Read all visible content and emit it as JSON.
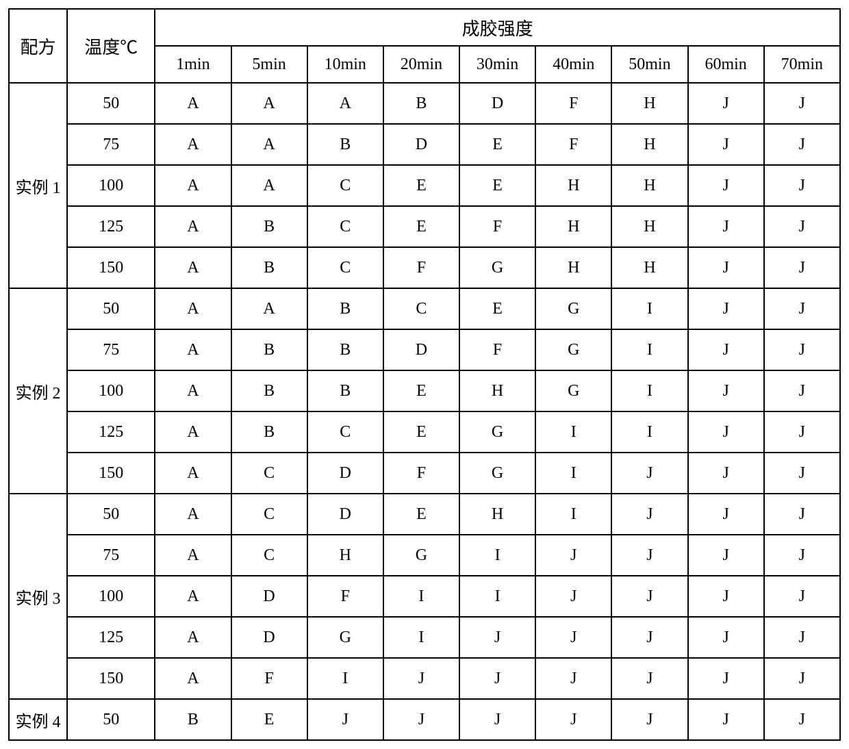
{
  "table": {
    "headers": {
      "formula": "配方",
      "temperature": "温度℃",
      "strength": "成胶强度"
    },
    "time_columns": [
      "1min",
      "5min",
      "10min",
      "20min",
      "30min",
      "40min",
      "50min",
      "60min",
      "70min"
    ],
    "groups": [
      {
        "label": "实例 1",
        "rows": [
          {
            "temp": "50",
            "values": [
              "A",
              "A",
              "A",
              "B",
              "D",
              "F",
              "H",
              "J",
              "J"
            ]
          },
          {
            "temp": "75",
            "values": [
              "A",
              "A",
              "B",
              "D",
              "E",
              "F",
              "H",
              "J",
              "J"
            ]
          },
          {
            "temp": "100",
            "values": [
              "A",
              "A",
              "C",
              "E",
              "E",
              "H",
              "H",
              "J",
              "J"
            ]
          },
          {
            "temp": "125",
            "values": [
              "A",
              "B",
              "C",
              "E",
              "F",
              "H",
              "H",
              "J",
              "J"
            ]
          },
          {
            "temp": "150",
            "values": [
              "A",
              "B",
              "C",
              "F",
              "G",
              "H",
              "H",
              "J",
              "J"
            ]
          }
        ]
      },
      {
        "label": "实例 2",
        "rows": [
          {
            "temp": "50",
            "values": [
              "A",
              "A",
              "B",
              "C",
              "E",
              "G",
              "I",
              "J",
              "J"
            ]
          },
          {
            "temp": "75",
            "values": [
              "A",
              "B",
              "B",
              "D",
              "F",
              "G",
              "I",
              "J",
              "J"
            ]
          },
          {
            "temp": "100",
            "values": [
              "A",
              "B",
              "B",
              "E",
              "H",
              "G",
              "I",
              "J",
              "J"
            ]
          },
          {
            "temp": "125",
            "values": [
              "A",
              "B",
              "C",
              "E",
              "G",
              "I",
              "I",
              "J",
              "J"
            ]
          },
          {
            "temp": "150",
            "values": [
              "A",
              "C",
              "D",
              "F",
              "G",
              "I",
              "J",
              "J",
              "J"
            ]
          }
        ]
      },
      {
        "label": "实例 3",
        "rows": [
          {
            "temp": "50",
            "values": [
              "A",
              "C",
              "D",
              "E",
              "H",
              "I",
              "J",
              "J",
              "J"
            ]
          },
          {
            "temp": "75",
            "values": [
              "A",
              "C",
              "H",
              "G",
              "I",
              "J",
              "J",
              "J",
              "J"
            ]
          },
          {
            "temp": "100",
            "values": [
              "A",
              "D",
              "F",
              "I",
              "I",
              "J",
              "J",
              "J",
              "J"
            ]
          },
          {
            "temp": "125",
            "values": [
              "A",
              "D",
              "G",
              "I",
              "J",
              "J",
              "J",
              "J",
              "J"
            ]
          },
          {
            "temp": "150",
            "values": [
              "A",
              "F",
              "I",
              "J",
              "J",
              "J",
              "J",
              "J",
              "J"
            ]
          }
        ]
      },
      {
        "label": "实例 4",
        "rows": [
          {
            "temp": "50",
            "values": [
              "B",
              "E",
              "J",
              "J",
              "J",
              "J",
              "J",
              "J",
              "J"
            ]
          }
        ]
      }
    ],
    "styling": {
      "border_color": "#000000",
      "border_width": 2,
      "background_color": "#ffffff",
      "text_color": "#000000",
      "header_fontsize": 26,
      "subheader_fontsize": 24,
      "cell_fontsize": 24,
      "font_family": "SimSun",
      "col_widths": {
        "formula": 85,
        "temperature": 128,
        "time": 111
      },
      "row_heights": {
        "header": 54,
        "subheader": 54,
        "data": 60
      }
    }
  }
}
